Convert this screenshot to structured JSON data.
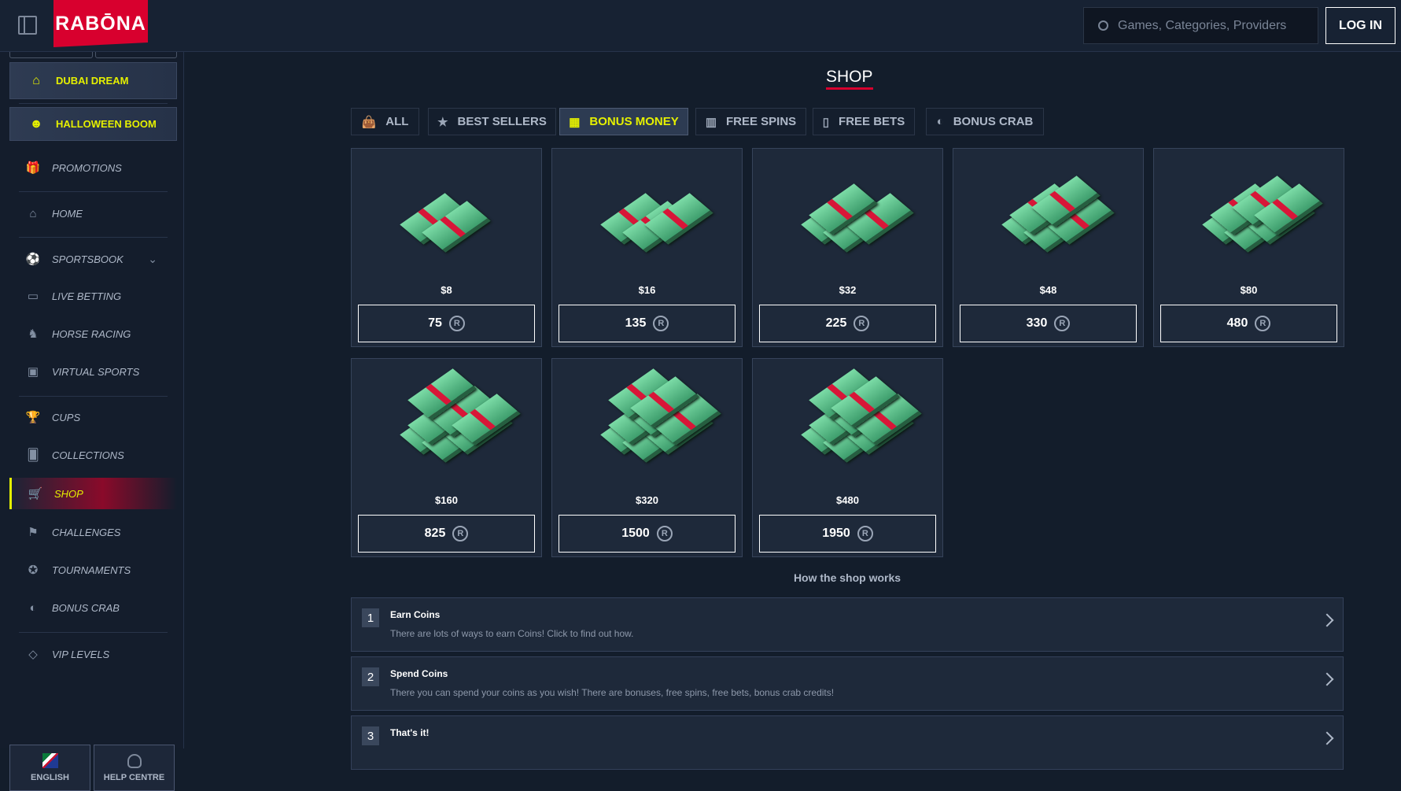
{
  "header": {
    "logo": "RABŌNA",
    "search_placeholder": "Games, Categories, Providers",
    "login_label": "LOG IN"
  },
  "sidebar": {
    "promos": [
      {
        "label": "DUBAI DREAM",
        "icon": "building-icon"
      },
      {
        "label": "HALLOWEEN BOOM",
        "icon": "pumpkin-icon"
      }
    ],
    "items": [
      {
        "label": "PROMOTIONS",
        "icon": "gift-icon"
      },
      {
        "label": "HOME",
        "icon": "home-icon"
      },
      {
        "label": "SPORTSBOOK",
        "icon": "ball-icon"
      },
      {
        "label": "LIVE BETTING",
        "icon": "live-icon"
      },
      {
        "label": "HORSE RACING",
        "icon": "horse-icon"
      },
      {
        "label": "VIRTUAL SPORTS",
        "icon": "virtual-icon"
      },
      {
        "label": "CUPS",
        "icon": "trophy-icon"
      },
      {
        "label": "COLLECTIONS",
        "icon": "cards-icon"
      },
      {
        "label": "SHOP",
        "icon": "cart-icon",
        "active": true
      },
      {
        "label": "CHALLENGES",
        "icon": "flag-icon"
      },
      {
        "label": "TOURNAMENTS",
        "icon": "medal-icon"
      },
      {
        "label": "BONUS CRAB",
        "icon": "crab-icon"
      },
      {
        "label": "VIP LEVELS",
        "icon": "diamond-icon"
      }
    ],
    "language_label": "ENGLISH",
    "help_label": "HELP CENTRE"
  },
  "shop": {
    "title": "SHOP",
    "tabs": [
      {
        "label": "ALL"
      },
      {
        "label": "BEST SELLERS"
      },
      {
        "label": "BONUS MONEY",
        "active": true
      },
      {
        "label": "FREE SPINS"
      },
      {
        "label": "FREE BETS"
      },
      {
        "label": "BONUS CRAB"
      }
    ],
    "products": [
      {
        "price": "$8",
        "coins": "75"
      },
      {
        "price": "$16",
        "coins": "135"
      },
      {
        "price": "$32",
        "coins": "225"
      },
      {
        "price": "$48",
        "coins": "330"
      },
      {
        "price": "$80",
        "coins": "480"
      },
      {
        "price": "$160",
        "coins": "825"
      },
      {
        "price": "$320",
        "coins": "1500"
      },
      {
        "price": "$480",
        "coins": "1950"
      }
    ],
    "coin_symbol": "R",
    "how_title": "How the shop works",
    "steps": [
      {
        "num": "1",
        "title": "Earn Coins",
        "desc": "There are lots of ways to earn Coins! Click to find out how."
      },
      {
        "num": "2",
        "title": "Spend Coins",
        "desc": "There you can spend your coins as you wish! There are bonuses, free spins, free bets, bonus crab credits!"
      },
      {
        "num": "3",
        "title": "That's it!"
      }
    ]
  },
  "colors": {
    "accent": "#e5f000",
    "brand": "#d8002e",
    "background": "#131d2b",
    "card": "#1e293a"
  }
}
